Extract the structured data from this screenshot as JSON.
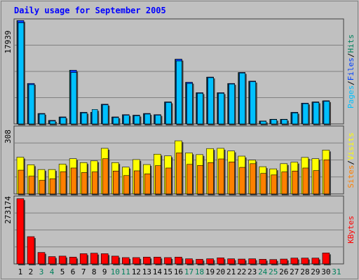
{
  "title": "Daily usage for September 2005",
  "colors": {
    "background": "#c0c0c0",
    "title": "#0000ff",
    "grid": "#808080",
    "hits": "#00805c",
    "files": "#0040ff",
    "pages": "#00c0ff",
    "visits": "#ffff00",
    "sites": "#ff8000",
    "kbytes": "#ff0000",
    "weekday_label": "#000000",
    "weekend_label": "#00805c"
  },
  "chart_data": [
    {
      "type": "bar",
      "panel": "hits_files_pages",
      "y_max_label": "17939",
      "ylim": [
        0,
        17939
      ],
      "legend": [
        "Pages",
        "/",
        "Files",
        "/",
        "Hits"
      ],
      "categories": [
        "1",
        "2",
        "3",
        "4",
        "5",
        "6",
        "7",
        "8",
        "9",
        "10",
        "11",
        "12",
        "13",
        "14",
        "15",
        "16",
        "17",
        "18",
        "19",
        "20",
        "21",
        "22",
        "23",
        "24",
        "25",
        "26",
        "27",
        "28",
        "29",
        "30",
        "31"
      ],
      "series": [
        {
          "name": "Hits",
          "values": [
            17900,
            7000,
            1800,
            600,
            1200,
            9300,
            2000,
            2000,
            3400,
            1200,
            1600,
            1500,
            1800,
            1600,
            3800,
            11200,
            7200,
            5400,
            8100,
            5400,
            7000,
            8900,
            7400,
            500,
            800,
            800,
            2000,
            3600,
            3800,
            4000,
            0
          ]
        },
        {
          "name": "Files",
          "values": [
            17900,
            7000,
            1800,
            600,
            1200,
            9300,
            2000,
            2000,
            3400,
            1200,
            1600,
            1500,
            1800,
            1600,
            3800,
            11200,
            7200,
            5400,
            8100,
            5400,
            7000,
            8900,
            7400,
            500,
            800,
            800,
            2000,
            3600,
            3800,
            4000,
            0
          ]
        },
        {
          "name": "Pages",
          "values": [
            17500,
            6800,
            1700,
            500,
            1100,
            8900,
            1900,
            2500,
            3300,
            1100,
            1500,
            1400,
            1700,
            1500,
            3700,
            10900,
            7000,
            5300,
            8000,
            5300,
            6900,
            8800,
            7300,
            450,
            750,
            750,
            1900,
            3500,
            3700,
            3900,
            0
          ]
        }
      ]
    },
    {
      "type": "bar",
      "panel": "visits_sites",
      "y_max_label": "308",
      "ylim": [
        0,
        308
      ],
      "legend": [
        "Sites",
        "/",
        "Visits"
      ],
      "categories": [
        "1",
        "2",
        "3",
        "4",
        "5",
        "6",
        "7",
        "8",
        "9",
        "10",
        "11",
        "12",
        "13",
        "14",
        "15",
        "16",
        "17",
        "18",
        "19",
        "20",
        "21",
        "22",
        "23",
        "24",
        "25",
        "26",
        "27",
        "28",
        "29",
        "30",
        "31"
      ],
      "series": [
        {
          "name": "Visits",
          "values": [
            170,
            135,
            113,
            113,
            138,
            163,
            145,
            153,
            211,
            145,
            124,
            159,
            136,
            184,
            176,
            246,
            190,
            182,
            210,
            211,
            199,
            175,
            157,
            126,
            116,
            140,
            147,
            169,
            163,
            203,
            0
          ]
        },
        {
          "name": "Sites",
          "values": [
            110,
            82,
            63,
            70,
            103,
            120,
            99,
            102,
            163,
            106,
            85,
            107,
            93,
            131,
            120,
            190,
            137,
            132,
            145,
            162,
            148,
            123,
            140,
            95,
            88,
            102,
            106,
            120,
            108,
            158,
            0
          ]
        }
      ]
    },
    {
      "type": "bar",
      "panel": "kbytes",
      "y_max_label": "273174",
      "ylim": [
        0,
        273174
      ],
      "legend": [
        "KBytes"
      ],
      "categories": [
        "1",
        "2",
        "3",
        "4",
        "5",
        "6",
        "7",
        "8",
        "9",
        "10",
        "11",
        "12",
        "13",
        "14",
        "15",
        "16",
        "17",
        "18",
        "19",
        "20",
        "21",
        "22",
        "23",
        "24",
        "25",
        "26",
        "27",
        "28",
        "29",
        "30",
        "31"
      ],
      "series": [
        {
          "name": "KBytes",
          "values": [
            268000,
            112000,
            47000,
            30000,
            32000,
            28000,
            42000,
            44000,
            42000,
            32000,
            26000,
            26000,
            28000,
            28000,
            26000,
            28000,
            21000,
            19000,
            21000,
            25000,
            21000,
            20000,
            21000,
            19000,
            18000,
            20000,
            24000,
            24000,
            24000,
            45000,
            0
          ]
        }
      ]
    }
  ],
  "weekend_days": [
    3,
    4,
    10,
    11,
    17,
    18,
    24,
    25,
    31
  ]
}
